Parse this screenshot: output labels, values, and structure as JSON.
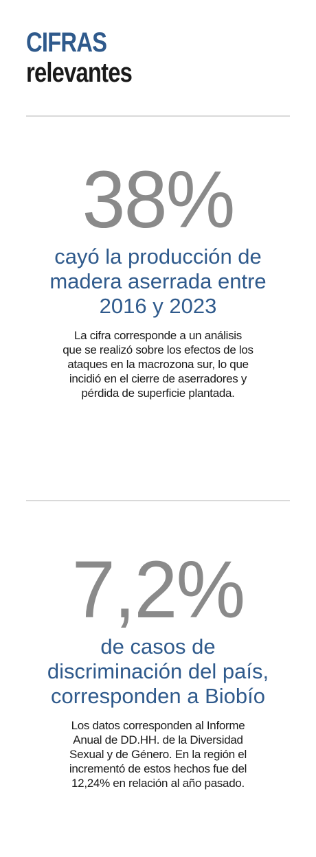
{
  "header": {
    "title": "CIFRAS",
    "subtitle": "relevantes"
  },
  "stats": [
    {
      "value": "38%",
      "headline_lines": [
        "cayó la producción de",
        "madera aserrada entre",
        "2016 y 2023"
      ],
      "description_lines": [
        "La cifra corresponde a un análisis",
        "que se realizó sobre los efectos de los",
        "ataques en la macrozona sur, lo que",
        "incidió en el cierre de aserradores y",
        "pérdida de superficie plantada."
      ]
    },
    {
      "value": "7,2%",
      "headline_lines": [
        "de casos de",
        "discriminación del país,",
        "corresponden a Biobío"
      ],
      "description_lines": [
        "Los datos corresponden al Informe",
        "Anual de DD.HH. de la Diversidad",
        "Sexual y de Género. En la región el",
        "incrementó de estos hechos fue del",
        "12,24% en relación al año pasado."
      ]
    }
  ],
  "colors": {
    "accent": "#2f5a8c",
    "number": "#8a8a8a",
    "text": "#1a1a1a",
    "divider": "#d9d9d9"
  }
}
